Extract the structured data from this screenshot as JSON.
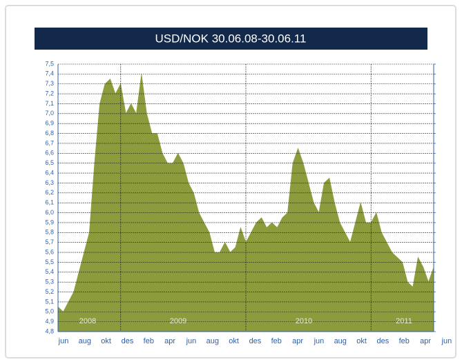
{
  "chart_data": {
    "type": "area",
    "title": "USD/NOK 30.06.08-30.06.11",
    "color": "#8c9c3c",
    "grid": true,
    "month_labels": [
      "jun",
      "aug",
      "okt",
      "des",
      "feb",
      "apr",
      "jun",
      "aug",
      "okt",
      "des",
      "feb",
      "apr",
      "jun",
      "aug",
      "okt",
      "des",
      "feb",
      "apr",
      "jun"
    ],
    "year_labels": [
      "2008",
      "2009",
      "2010",
      "2011"
    ],
    "ylim": [
      4.8,
      7.5
    ],
    "yticks": [
      {
        "value": 4.8,
        "label": "4,8"
      },
      {
        "value": 4.9,
        "label": "4,9"
      },
      {
        "value": 5.0,
        "label": "5,0"
      },
      {
        "value": 5.1,
        "label": "5,1"
      },
      {
        "value": 5.2,
        "label": "5,2"
      },
      {
        "value": 5.3,
        "label": "5,3"
      },
      {
        "value": 5.4,
        "label": "5,4"
      },
      {
        "value": 5.5,
        "label": "5,5"
      },
      {
        "value": 5.6,
        "label": "5,6"
      },
      {
        "value": 5.7,
        "label": "5,7"
      },
      {
        "value": 5.8,
        "label": "5,8"
      },
      {
        "value": 5.9,
        "label": "5,9"
      },
      {
        "value": 6.0,
        "label": "6,0"
      },
      {
        "value": 6.1,
        "label": "6,1"
      },
      {
        "value": 6.2,
        "label": "6,2"
      },
      {
        "value": 6.3,
        "label": "6,3"
      },
      {
        "value": 6.4,
        "label": "6,4"
      },
      {
        "value": 6.5,
        "label": "6,5"
      },
      {
        "value": 6.6,
        "label": "6,6"
      },
      {
        "value": 6.7,
        "label": "6,7"
      },
      {
        "value": 6.8,
        "label": "6,8"
      },
      {
        "value": 6.9,
        "label": "6,9"
      },
      {
        "value": 7.0,
        "label": "7,0"
      },
      {
        "value": 7.1,
        "label": "7,1"
      },
      {
        "value": 7.2,
        "label": "7,2"
      },
      {
        "value": 7.3,
        "label": "7,3"
      },
      {
        "value": 7.4,
        "label": "7,4"
      },
      {
        "value": 7.5,
        "label": "7,5"
      }
    ],
    "values": [
      5.05,
      5.0,
      5.1,
      5.2,
      5.4,
      5.6,
      5.8,
      6.5,
      7.1,
      7.3,
      7.35,
      7.2,
      7.3,
      7.0,
      7.1,
      7.0,
      7.4,
      7.0,
      6.8,
      6.8,
      6.6,
      6.5,
      6.5,
      6.6,
      6.5,
      6.3,
      6.2,
      6.0,
      5.9,
      5.8,
      5.6,
      5.6,
      5.7,
      5.6,
      5.65,
      5.85,
      5.7,
      5.8,
      5.9,
      5.95,
      5.85,
      5.9,
      5.85,
      5.95,
      6.0,
      6.5,
      6.65,
      6.5,
      6.3,
      6.1,
      6.0,
      6.3,
      6.35,
      6.1,
      5.9,
      5.8,
      5.7,
      5.9,
      6.1,
      5.9,
      5.9,
      6.0,
      5.8,
      5.7,
      5.6,
      5.55,
      5.5,
      5.3,
      5.25,
      5.55,
      5.45,
      5.3,
      5.45
    ]
  }
}
